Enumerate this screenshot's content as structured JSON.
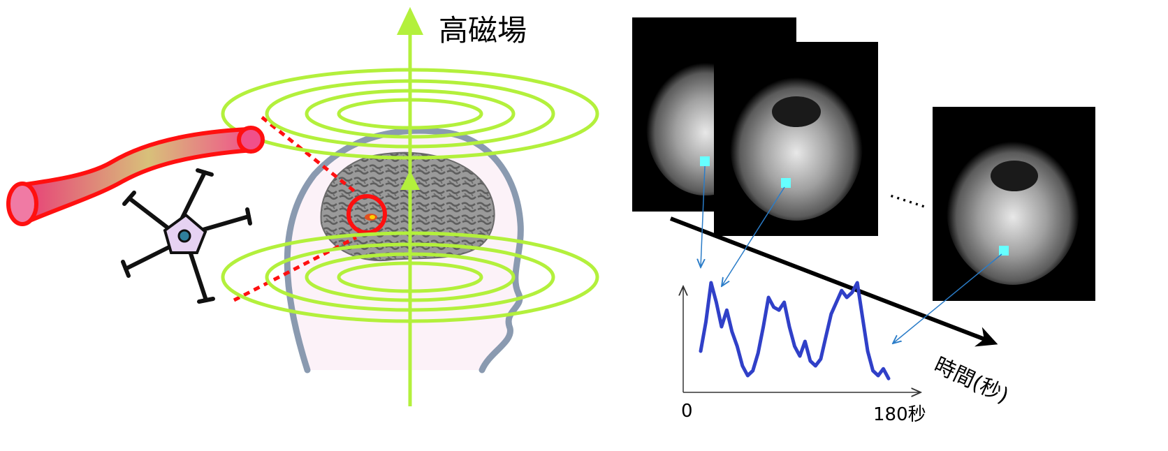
{
  "labels": {
    "field_label": "高磁場",
    "time_label": "時間(秒)",
    "axis_start": "0",
    "axis_end": "180秒",
    "ellipsis": "……"
  },
  "colors": {
    "field_green": "#b3f03c",
    "vessel_red": "#ff1010",
    "vessel_fill": "#f05a8c",
    "neuron_body": "#e6d2f2",
    "head_outline": "#8a9ab0",
    "skin": "#fcf2f8",
    "signal_blue": "#3040c8",
    "arrow_blue": "#2a7cc8",
    "voxel_cyan": "#66ffff"
  },
  "icons": {
    "blood_vessel": "blood-vessel-icon",
    "neuron": "neuron-icon",
    "head": "head-icon",
    "brain": "brain-icon"
  },
  "chart_data": {
    "type": "line",
    "x_range": [
      0,
      180
    ],
    "x_unit": "秒",
    "x": [
      0,
      5,
      10,
      15,
      20,
      25,
      30,
      35,
      40,
      45,
      50,
      55,
      60,
      65,
      70,
      75,
      80,
      85,
      90,
      95,
      100,
      105,
      110,
      115,
      120,
      125,
      130,
      135,
      140,
      145,
      150,
      155,
      160,
      165,
      170,
      175,
      180
    ],
    "values": [
      0.3,
      0.6,
      1.0,
      0.8,
      0.55,
      0.72,
      0.5,
      0.35,
      0.15,
      0.05,
      0.1,
      0.28,
      0.55,
      0.85,
      0.75,
      0.72,
      0.8,
      0.55,
      0.35,
      0.25,
      0.4,
      0.2,
      0.15,
      0.22,
      0.45,
      0.68,
      0.8,
      0.92,
      0.85,
      0.9,
      1.0,
      0.65,
      0.3,
      0.1,
      0.05,
      0.12,
      0.02
    ],
    "ylim": [
      0,
      1
    ]
  }
}
